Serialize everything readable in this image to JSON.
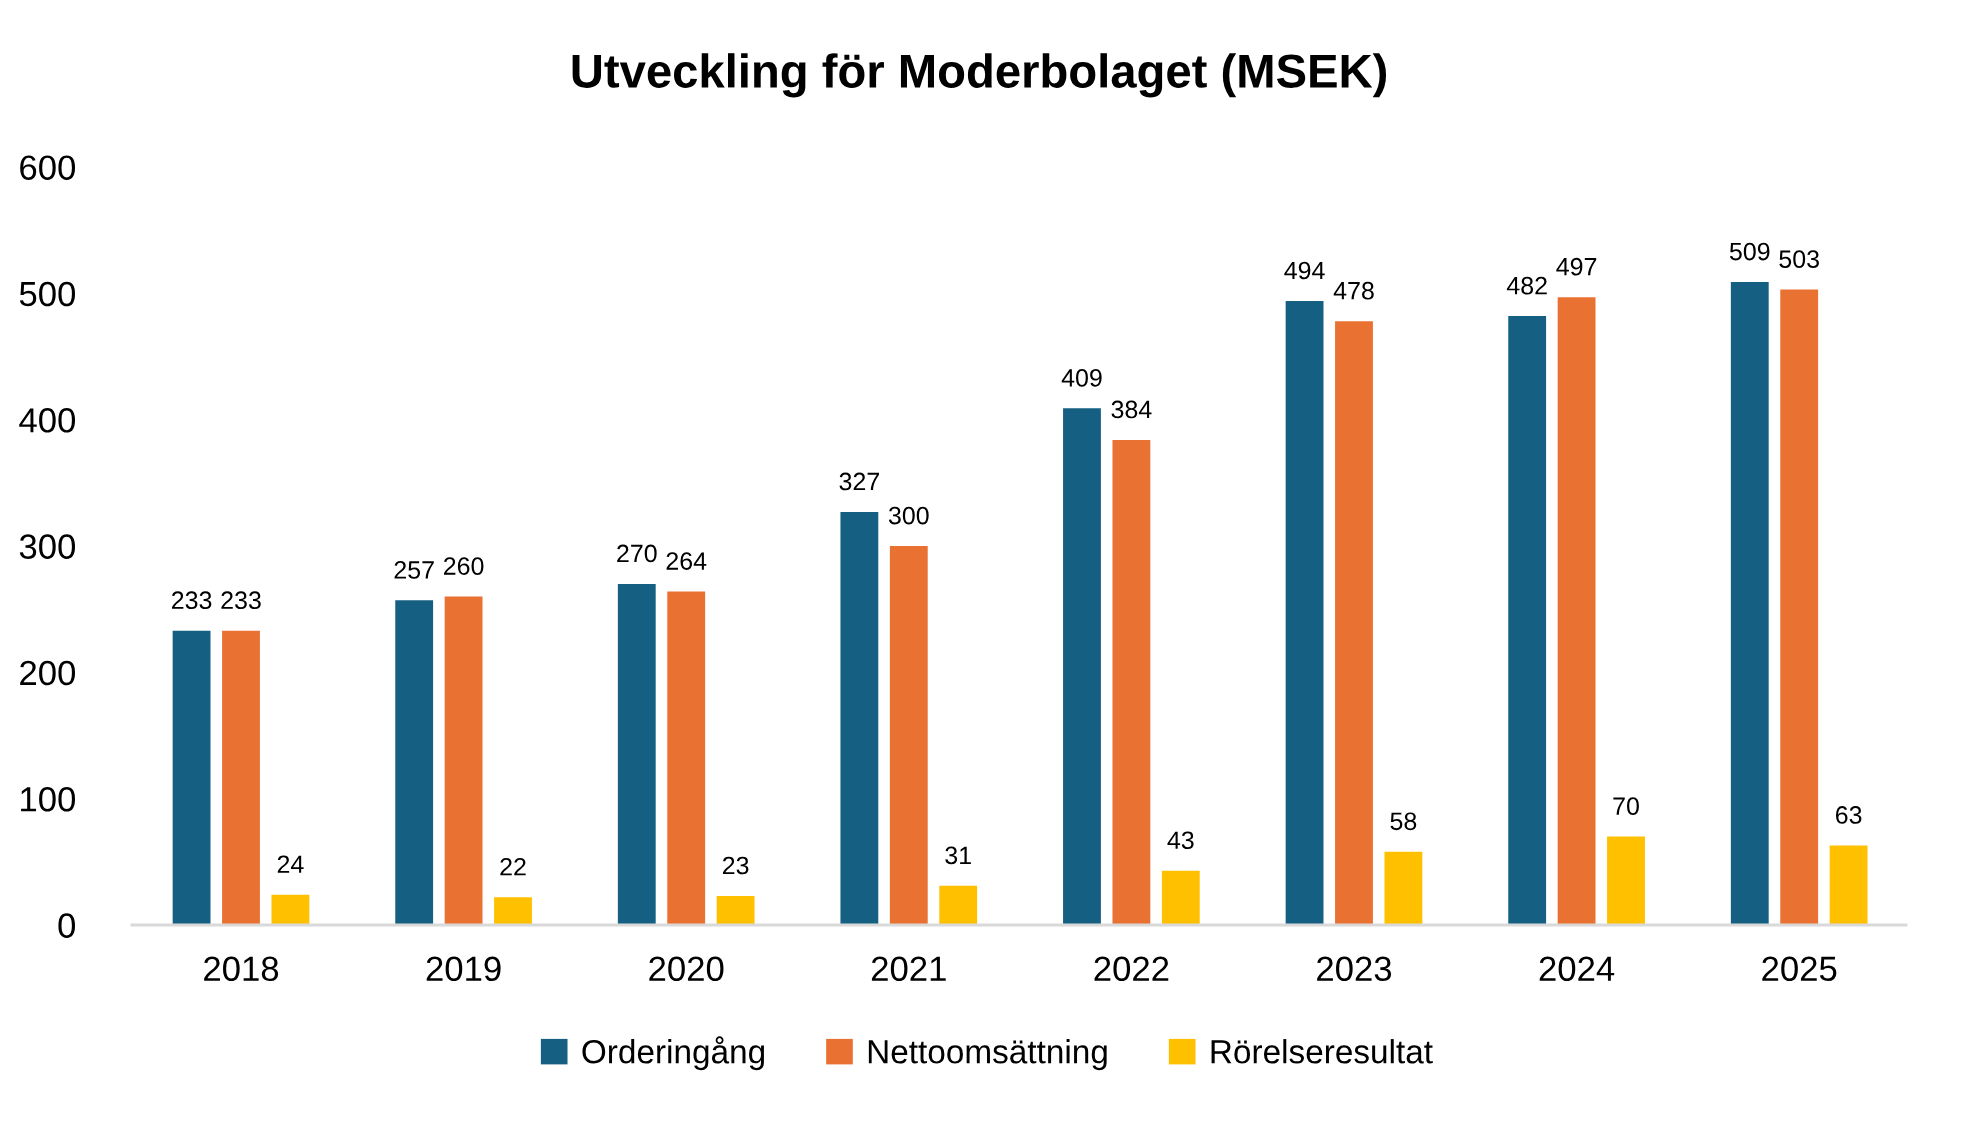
{
  "chart_data": {
    "type": "bar",
    "title": "Utveckling för Moderbolaget (MSEK)",
    "categories": [
      "2018",
      "2019",
      "2020",
      "2021",
      "2022",
      "2023",
      "2024",
      "2025"
    ],
    "series": [
      {
        "name": "Orderingång",
        "color": "#156082",
        "values": [
          233,
          257,
          270,
          327,
          409,
          494,
          482,
          509
        ]
      },
      {
        "name": "Nettoomsättning",
        "color": "#e97132",
        "values": [
          233,
          260,
          264,
          300,
          384,
          478,
          497,
          503
        ]
      },
      {
        "name": "Rörelseresultat",
        "color": "#ffc000",
        "values": [
          24,
          22,
          23,
          31,
          43,
          58,
          70,
          63
        ]
      }
    ],
    "ylim": [
      0,
      600
    ],
    "yticks": [
      0,
      100,
      200,
      300,
      400,
      500,
      600
    ],
    "data_labels": true,
    "grid": false,
    "legend": "bottom"
  }
}
